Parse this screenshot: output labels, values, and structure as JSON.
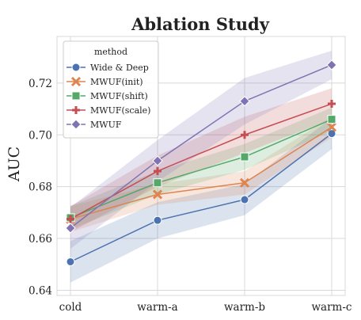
{
  "chart_data": {
    "type": "line",
    "title": "Ablation Study",
    "xlabel": "",
    "ylabel": "AUC",
    "categories": [
      "cold",
      "warm-a",
      "warm-b",
      "warm-c"
    ],
    "ylim": [
      0.638,
      0.738
    ],
    "yticks": [
      0.64,
      0.66,
      0.68,
      0.7,
      0.72
    ],
    "ytick_labels": [
      "0.64",
      "0.66",
      "0.68",
      "0.70",
      "0.72"
    ],
    "grid": true,
    "legend": {
      "title": "method",
      "placement": "top-left"
    },
    "series": [
      {
        "name": "Wide & Deep",
        "color": "#4C72B0",
        "marker": "circle",
        "values": [
          0.651,
          0.667,
          0.675,
          0.7005
        ],
        "lower": [
          0.643,
          0.66,
          0.669,
          0.6945
        ],
        "upper": [
          0.659,
          0.674,
          0.681,
          0.7065
        ]
      },
      {
        "name": "MWUF(init)",
        "color": "#DD8452",
        "marker": "x",
        "values": [
          0.6675,
          0.677,
          0.6815,
          0.703
        ],
        "lower": [
          0.6625,
          0.673,
          0.677,
          0.699
        ],
        "upper": [
          0.6725,
          0.681,
          0.686,
          0.707
        ]
      },
      {
        "name": "MWUF(shift)",
        "color": "#55A868",
        "marker": "square",
        "values": [
          0.668,
          0.6815,
          0.6915,
          0.706
        ],
        "lower": [
          0.6635,
          0.677,
          0.6865,
          0.7015
        ],
        "upper": [
          0.6725,
          0.686,
          0.6965,
          0.7105
        ]
      },
      {
        "name": "MWUF(scale)",
        "color": "#C44E52",
        "marker": "plus",
        "values": [
          0.6675,
          0.686,
          0.7,
          0.712
        ],
        "lower": [
          0.6625,
          0.68,
          0.693,
          0.706
        ],
        "upper": [
          0.6725,
          0.692,
          0.707,
          0.718
        ]
      },
      {
        "name": "MWUF",
        "color": "#8172B3",
        "marker": "diamond",
        "values": [
          0.664,
          0.69,
          0.713,
          0.727
        ],
        "lower": [
          0.656,
          0.682,
          0.704,
          0.7215
        ],
        "upper": [
          0.672,
          0.698,
          0.722,
          0.7325
        ]
      }
    ]
  }
}
